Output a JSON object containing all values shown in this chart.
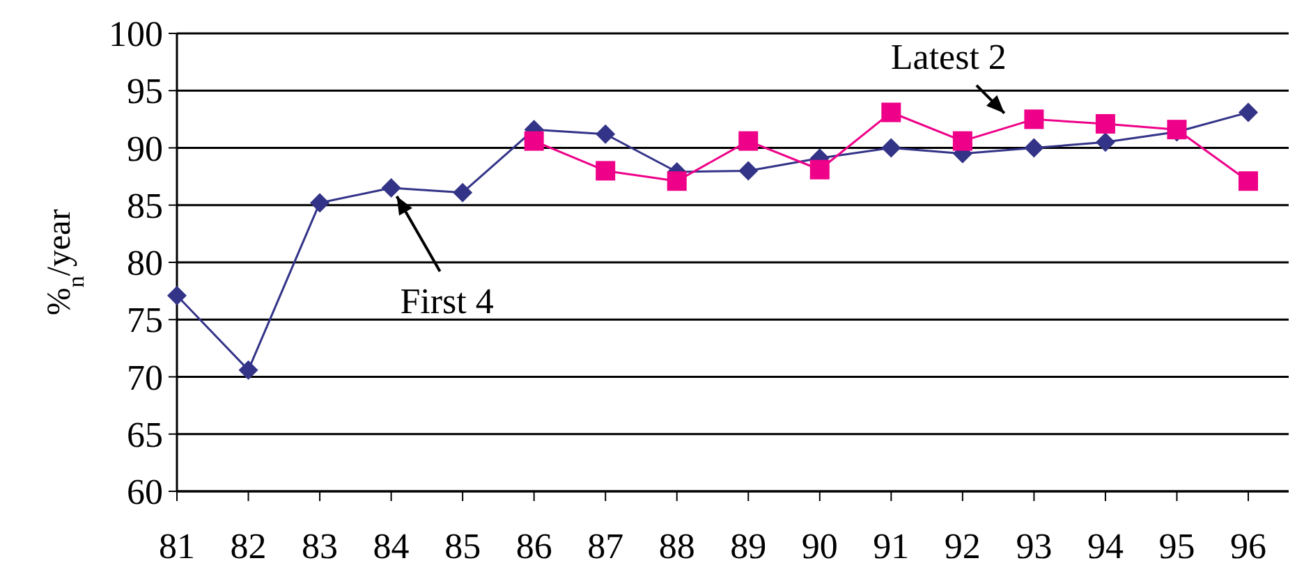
{
  "chart_data": {
    "type": "line",
    "ylabel": "%$_{n}$/year",
    "categories": [
      "81",
      "82",
      "83",
      "84",
      "85",
      "86",
      "87",
      "88",
      "89",
      "90",
      "91",
      "92",
      "93",
      "94",
      "95",
      "96"
    ],
    "series": [
      {
        "name": "First 4",
        "color": "#333388",
        "marker": "diamond",
        "values": [
          77.1,
          70.6,
          85.2,
          86.5,
          86.1,
          91.6,
          91.2,
          87.9,
          88.0,
          89.1,
          90.0,
          89.5,
          90.0,
          90.5,
          91.4,
          93.1
        ]
      },
      {
        "name": "Latest 2",
        "color": "#ee0088",
        "marker": "square",
        "values": [
          null,
          null,
          null,
          null,
          null,
          90.6,
          88.0,
          87.1,
          90.6,
          88.1,
          93.1,
          90.6,
          92.5,
          92.1,
          91.6,
          87.1
        ]
      }
    ],
    "ylim": [
      60,
      100
    ],
    "yticks": [
      60,
      65,
      70,
      75,
      80,
      85,
      90,
      95,
      100
    ],
    "grid": "y"
  }
}
